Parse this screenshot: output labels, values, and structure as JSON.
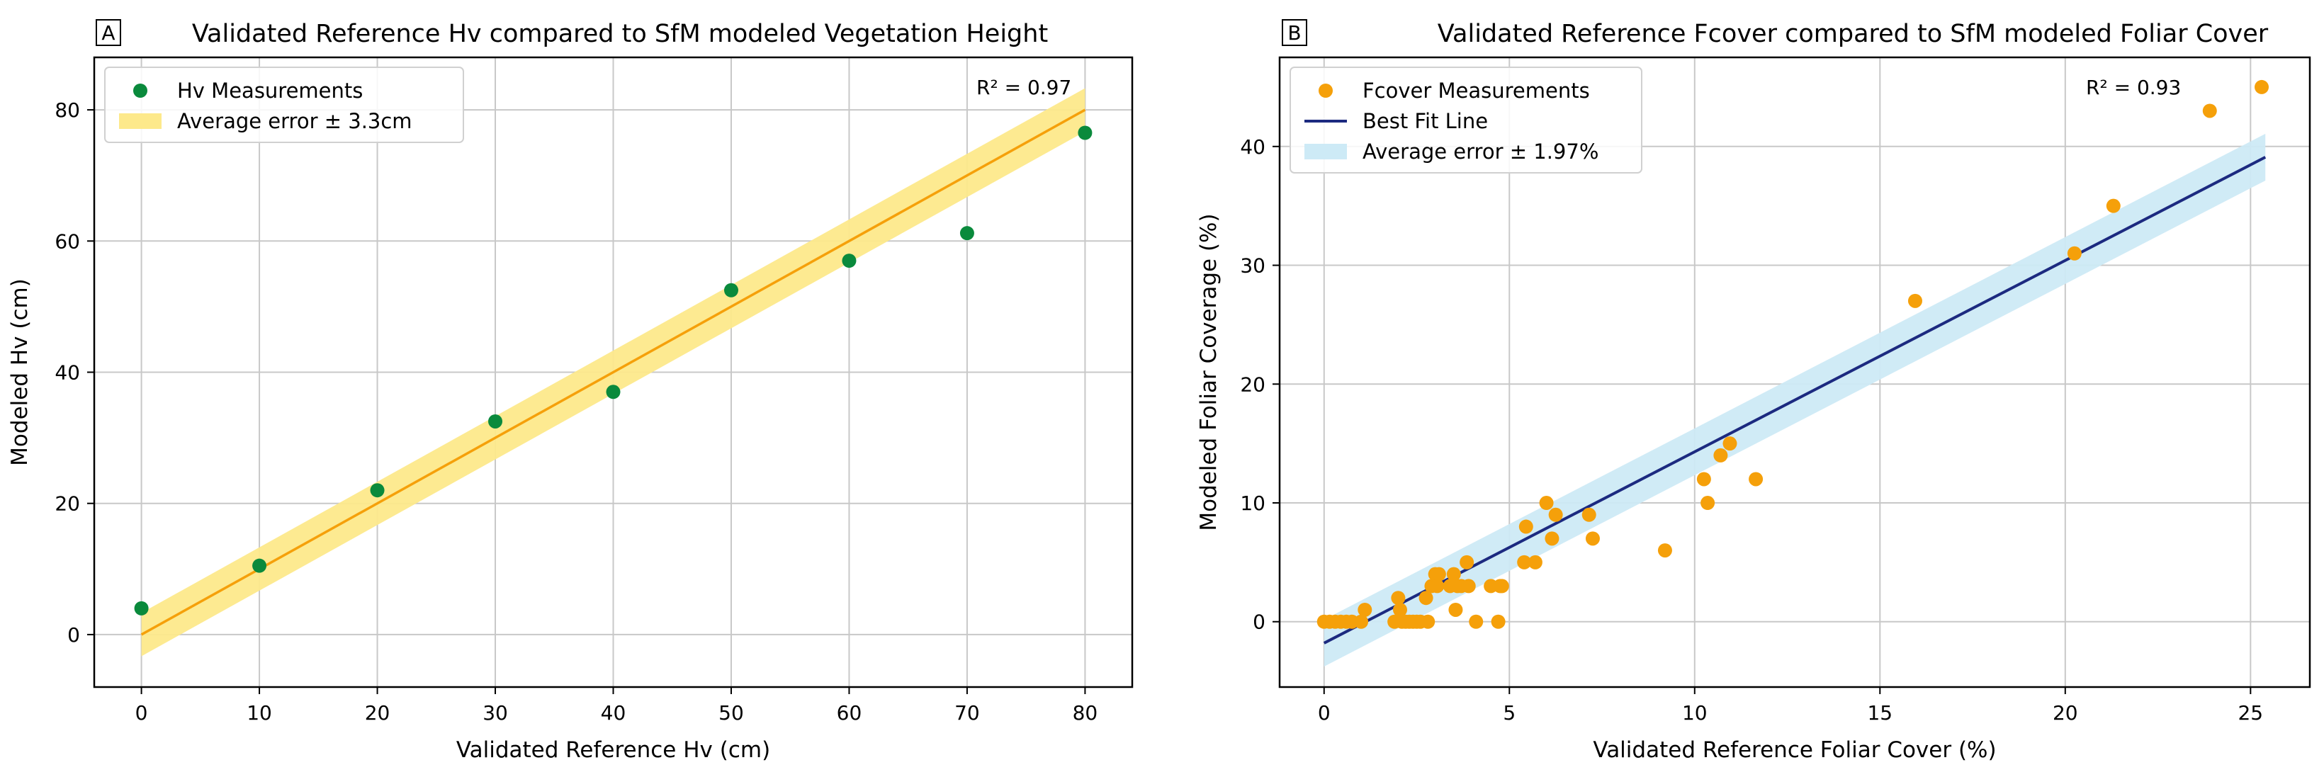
{
  "colors": {
    "hv_points": "#0a8a3c",
    "hv_line": "#f5a00a",
    "hv_band": "#fde98b",
    "fc_points": "#f5a00a",
    "fc_line": "#1c2a80",
    "fc_band": "#cdeaf6",
    "grid": "#c8c8c8"
  },
  "chart_data": [
    {
      "type": "scatter",
      "panel": "A",
      "title": "Validated Reference Hv compared to SfM modeled  Vegetation Height",
      "xlabel": "Validated Reference Hv (cm)",
      "ylabel": "Modeled Hv (cm)",
      "xlim": [
        -4,
        84
      ],
      "ylim": [
        -8,
        88
      ],
      "xticks": [
        0,
        10,
        20,
        30,
        40,
        50,
        60,
        70,
        80
      ],
      "yticks": [
        0,
        20,
        40,
        60,
        80
      ],
      "grid": true,
      "annotation": "R² = 0.97",
      "legend": {
        "placement": "top-left",
        "items": [
          "Hv Measurements",
          "Average error ± 3.3cm"
        ]
      },
      "series": [
        {
          "name": "Hv Measurements",
          "kind": "points",
          "x": [
            0,
            10,
            20,
            30,
            40,
            50,
            60,
            70,
            80
          ],
          "y": [
            4,
            10.5,
            22,
            32.5,
            37,
            52.5,
            57,
            61.2,
            76.5
          ]
        },
        {
          "name": "Fit line",
          "kind": "line",
          "x": [
            0,
            80
          ],
          "y": [
            0,
            80
          ]
        },
        {
          "name": "Average error ± 3.3cm",
          "kind": "band",
          "x": [
            0,
            80
          ],
          "y": [
            0,
            80
          ],
          "half_width": 3.3
        }
      ]
    },
    {
      "type": "scatter",
      "panel": "B",
      "title": "Validated Reference Fcover compared to SfM modeled Foliar Cover",
      "xlabel": "Validated Reference Foliar Cover (%)",
      "ylabel": "Modeled Foliar Coverage (%)",
      "xlim": [
        -1.2,
        26.6
      ],
      "ylim": [
        -5.5,
        47.5
      ],
      "xticks": [
        0,
        5,
        10,
        15,
        20,
        25
      ],
      "yticks": [
        0,
        10,
        20,
        30,
        40
      ],
      "grid": true,
      "annotation": "R² = 0.93",
      "legend": {
        "placement": "top-left",
        "items": [
          "Fcover Measurements",
          "Best Fit Line",
          "Average error ± 1.97%"
        ]
      },
      "series": [
        {
          "name": "Fcover Measurements",
          "kind": "points",
          "x": [
            0,
            0.15,
            0.3,
            0.45,
            0.6,
            0.75,
            1.0,
            1.1,
            1.9,
            2.0,
            2.05,
            2.1,
            2.2,
            2.3,
            2.4,
            2.5,
            2.6,
            2.75,
            2.8,
            2.9,
            3.0,
            3.05,
            3.1,
            3.4,
            3.5,
            3.55,
            3.6,
            3.7,
            3.85,
            3.9,
            4.1,
            4.5,
            4.7,
            4.75,
            4.8,
            5.4,
            5.45,
            5.7,
            6.0,
            6.15,
            6.25,
            7.15,
            7.25,
            9.2,
            10.25,
            10.35,
            10.7,
            10.95,
            11.65,
            15.95,
            20.25,
            21.3,
            23.9,
            25.3
          ],
          "y": [
            0,
            0,
            0,
            0,
            0,
            0,
            0,
            1,
            0,
            2,
            1,
            0,
            0,
            0,
            0,
            0,
            0,
            2,
            0,
            3,
            4,
            3,
            4,
            3,
            4,
            1,
            3,
            3,
            5,
            3,
            0,
            3,
            0,
            3,
            3,
            5,
            8,
            5,
            10,
            7,
            9,
            9,
            7,
            6,
            12,
            10,
            14,
            15,
            12,
            27,
            31,
            35,
            43,
            45
          ]
        },
        {
          "name": "Best Fit Line",
          "kind": "line",
          "x": [
            0,
            25.4
          ],
          "y": [
            -1.8,
            39.1
          ]
        },
        {
          "name": "Average error ± 1.97%",
          "kind": "band",
          "x": [
            0,
            25.4
          ],
          "y": [
            -1.8,
            39.1
          ],
          "half_width": 1.97
        }
      ]
    }
  ]
}
